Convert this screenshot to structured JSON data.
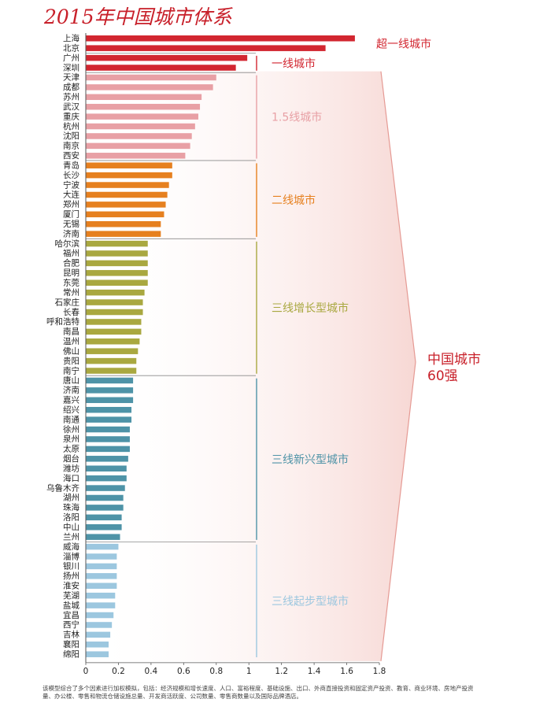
{
  "title": "2015年中国城市体系",
  "footnote": "该模型综合了多个因素进行加权模拟，包括：经济规模和增长速度、人口、富裕程度、基础设施、出口、外商直接投资和固定资产投资、教育、商业环境、房地产投资量、办公楼、零售和物流仓储设施总量、开发商活跃度、公司数量、零售商数量以及国际品牌酒店。",
  "chart_data": {
    "type": "bar",
    "orientation": "horizontal",
    "title": "2015年中国城市体系",
    "xlim": [
      0,
      1.8
    ],
    "xticks": [
      "0",
      "0.2",
      "0.4",
      "0.6",
      "0.8",
      "1",
      "1.2",
      "1.4",
      "1.6",
      "1.8"
    ],
    "categories": [
      "上海",
      "北京",
      "广州",
      "深圳",
      "天津",
      "成都",
      "苏州",
      "武汉",
      "重庆",
      "杭州",
      "沈阳",
      "南京",
      "西安",
      "青岛",
      "长沙",
      "宁波",
      "大连",
      "郑州",
      "厦门",
      "无锡",
      "济南",
      "哈尔滨",
      "福州",
      "合肥",
      "昆明",
      "东莞",
      "常州",
      "石家庄",
      "长春",
      "呼和浩特",
      "南昌",
      "温州",
      "佛山",
      "贵阳",
      "南宁",
      "唐山",
      "济南",
      "嘉兴",
      "绍兴",
      "南通",
      "徐州",
      "泉州",
      "太原",
      "烟台",
      "潍坊",
      "海口",
      "乌鲁木齐",
      "湖州",
      "珠海",
      "洛阳",
      "中山",
      "兰州",
      "威海",
      "淄博",
      "银川",
      "扬州",
      "淮安",
      "芜湖",
      "盐城",
      "宜昌",
      "西宁",
      "吉林",
      "襄阳",
      "绵阳"
    ],
    "values": [
      1.65,
      1.47,
      0.99,
      0.92,
      0.8,
      0.78,
      0.71,
      0.7,
      0.69,
      0.67,
      0.65,
      0.64,
      0.61,
      0.53,
      0.53,
      0.51,
      0.5,
      0.49,
      0.48,
      0.46,
      0.46,
      0.38,
      0.38,
      0.38,
      0.38,
      0.38,
      0.36,
      0.35,
      0.35,
      0.34,
      0.34,
      0.33,
      0.32,
      0.31,
      0.31,
      0.29,
      0.29,
      0.29,
      0.28,
      0.28,
      0.27,
      0.27,
      0.27,
      0.26,
      0.25,
      0.25,
      0.24,
      0.23,
      0.23,
      0.22,
      0.22,
      0.21,
      0.2,
      0.19,
      0.19,
      0.19,
      0.19,
      0.18,
      0.18,
      0.17,
      0.16,
      0.15,
      0.14,
      0.14
    ],
    "tiers": [
      {
        "label": "超一线城市",
        "start": 0,
        "end": 1,
        "color": "#d22630"
      },
      {
        "label": "一线城市",
        "start": 2,
        "end": 3,
        "color": "#d22630"
      },
      {
        "label": "1.5线城市",
        "start": 4,
        "end": 12,
        "color": "#e8a0a5"
      },
      {
        "label": "二线城市",
        "start": 13,
        "end": 20,
        "color": "#e6801f"
      },
      {
        "label": "三线增长型城市",
        "start": 21,
        "end": 34,
        "color": "#a9a840"
      },
      {
        "label": "三线新兴型城市",
        "start": 35,
        "end": 51,
        "color": "#4e93a7"
      },
      {
        "label": "三线起步型城市",
        "start": 52,
        "end": 63,
        "color": "#9cc7df"
      }
    ],
    "summary_label": [
      "中国城市",
      "60强"
    ]
  }
}
